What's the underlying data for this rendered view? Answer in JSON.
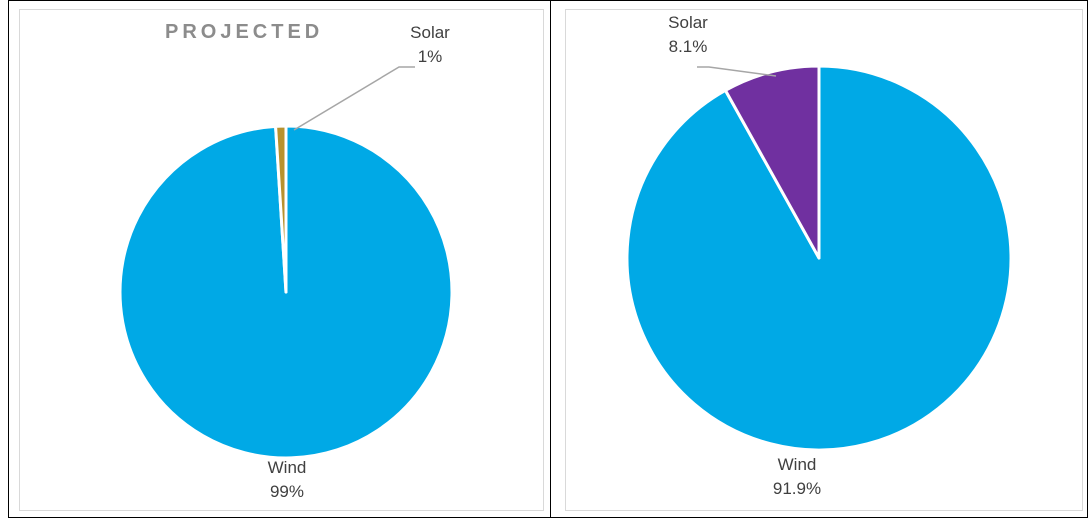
{
  "chart_data": [
    {
      "type": "pie",
      "title": "PROJECTED",
      "slices": [
        {
          "name": "Wind",
          "value": 99,
          "label": "99%",
          "color": "#00a9e6"
        },
        {
          "name": "Solar",
          "value": 1,
          "label": "1%",
          "color": "#b8922e"
        }
      ]
    },
    {
      "type": "pie",
      "title": "",
      "slices": [
        {
          "name": "Wind",
          "value": 91.9,
          "label": "91.9%",
          "color": "#00a9e6"
        },
        {
          "name": "Solar",
          "value": 8.1,
          "label": "8.1%",
          "color": "#7030a0"
        }
      ]
    }
  ],
  "colors": {
    "leader_line": "#a6a6a6",
    "slice_border": "#ffffff",
    "label_text": "#404040",
    "title_text": "#8c8c8c"
  }
}
